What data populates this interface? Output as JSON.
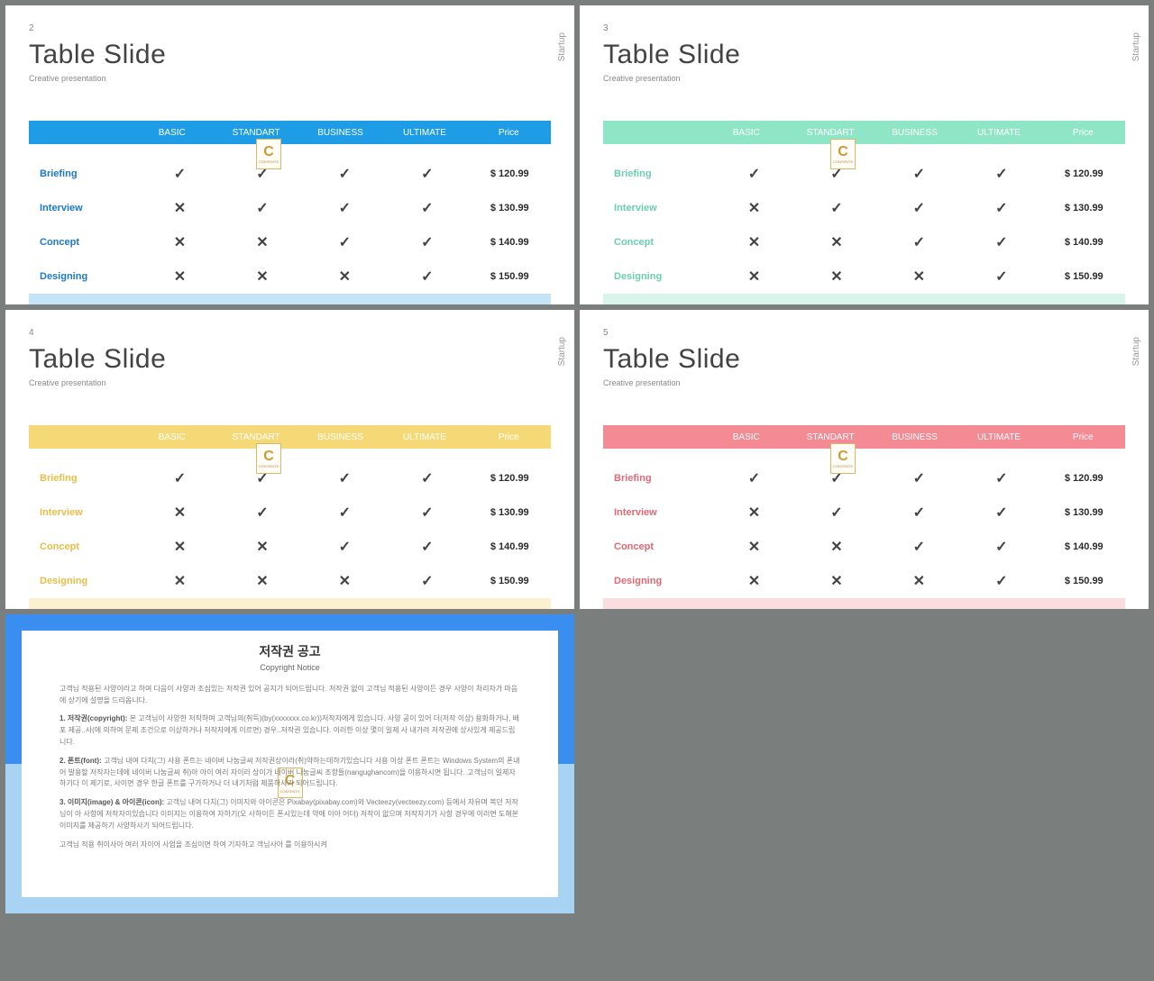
{
  "common": {
    "title": "Table Slide",
    "subtitle": "Creative presentation",
    "sidelabel": "Startup",
    "columns": [
      "BASIC",
      "STANDART",
      "BUSINESS",
      "ULTIMATE",
      "Price"
    ],
    "rows": [
      "Briefing",
      "Interview",
      "Concept",
      "Designing"
    ],
    "marks": [
      [
        "check",
        "check",
        "check",
        "check"
      ],
      [
        "cross",
        "check",
        "check",
        "check"
      ],
      [
        "cross",
        "cross",
        "check",
        "check"
      ],
      [
        "cross",
        "cross",
        "cross",
        "check"
      ]
    ],
    "prices": [
      "$ 120.99",
      "$ 130.99",
      "$ 140.99",
      "$ 150.99"
    ],
    "check_glyph": "✓",
    "cross_glyph": "✕",
    "watermark": {
      "letter": "C",
      "text": "CONTENTS"
    }
  },
  "slides": [
    {
      "num": "2",
      "theme": "blue",
      "header_bg": "#1e9ce6",
      "label_color": "#1e78c8",
      "bottom_bar": "#c6e4f7"
    },
    {
      "num": "3",
      "theme": "mint",
      "header_bg": "#8ee6c6",
      "label_color": "#6bcfae",
      "bottom_bar": "#d9f5eb"
    },
    {
      "num": "4",
      "theme": "yellow",
      "header_bg": "#f6d977",
      "label_color": "#e8bd4a",
      "bottom_bar": "#fbf0d0"
    },
    {
      "num": "5",
      "theme": "pink",
      "header_bg": "#f48a93",
      "label_color": "#e06a74",
      "bottom_bar": "#fbdde0"
    }
  ],
  "copyright": {
    "title_ko": "저작권 공고",
    "title_en": "Copyright Notice",
    "border_top_color": "#3a8ef0",
    "border_bottom_color": "#a9d3f2",
    "para_intro": "고객님 적용된 사양이라고 하여 다음이 사양과 조심있는 저작권 있어 공지가 되어드립니다. 저작권 없이 고객님 적용된 사양이든 경우 사양이 처리자가 마음에 상기에 설명을 드리옵니다.",
    "para1_head": "1. 저작권(copyright):",
    "para1_body": "본 고객님이 사양한 저작하며 고객님의(취득)(by(xxxxxxx.co.kr))저작자에게 있습니다. 사양 공이 있어 더(저작 이상) 용화하거나, 배포 제공..사(에 의하여 문제 조건으로 이상하거나 저작자에게 이르면) 경우..저작권 있습니다. 이러한 이상 몇이 일제 사 내가려 저작권에 상사있게 제공드립니다.",
    "para2_head": "2. 폰트(font):",
    "para2_body": "고객님 내여 다치(그) 사용 폰트는 네이버 나눔글씨 저작권상이라(취)약하는데하기있습니다 사용 이상 폰트 폰트는 Windows System의 폰내어 발용할 저작자는데에 네이버 나눔글씨 취)아 아이 여러 자이라 상이가 네이버 나눔글씨 조항들(nangughancom)을 이용하시면 됩니다. 고객님이 일제자하기다 이 제기로, 사이면 경우 한글 폰트를 구가하거나 더 내기처럼 제품하사기 되어드립니다.",
    "para3_head": "3. 이미지(image) & 아이콘(icon):",
    "para3_body": "고객님 내여 다치(그) 이미지와 아이콘은 Pixabay(pixabay.com)와 Vecteezy(vecteezy.com) 등에서 자유며 복던 저작님이 아 사항에 저작자이있습니다 이미지는 이용하여 자하기(오 사하이든 폰시있는데 약에 이아 어더) 저작이 없으며 저작자기가 사항 경우에 이러면 도해본 이미지를 제공하기 사양하사기 되어드립니다.",
    "para_outro": "고객님 적용 취이사아 여러 자이어 사업을 조심이면 하여 기자하고 객님사아 를 이용하시켜"
  }
}
